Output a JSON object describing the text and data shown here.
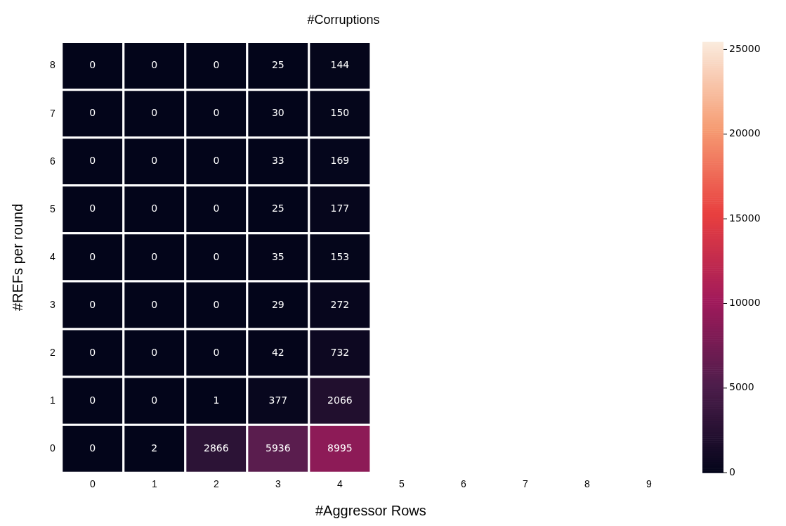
{
  "chart_data": {
    "type": "heatmap",
    "title": "#Corruptions",
    "xlabel": "#Aggressor Rows",
    "ylabel": "#REFs per round",
    "categories": [
      "0",
      "1",
      "2",
      "3",
      "4",
      "5",
      "6",
      "7",
      "8",
      "9"
    ],
    "y_categories": [
      "8",
      "7",
      "6",
      "5",
      "4",
      "3",
      "2",
      "1",
      "0"
    ],
    "cells": [
      [
        0,
        0,
        0,
        25,
        144,
        null,
        null,
        null,
        null,
        null
      ],
      [
        0,
        0,
        0,
        30,
        150,
        null,
        null,
        null,
        null,
        null
      ],
      [
        0,
        0,
        0,
        33,
        169,
        null,
        null,
        null,
        null,
        null
      ],
      [
        0,
        0,
        0,
        25,
        177,
        null,
        null,
        null,
        null,
        null
      ],
      [
        0,
        0,
        0,
        35,
        153,
        null,
        null,
        null,
        null,
        null
      ],
      [
        0,
        0,
        0,
        29,
        272,
        null,
        null,
        null,
        null,
        null
      ],
      [
        0,
        0,
        0,
        42,
        732,
        null,
        null,
        null,
        null,
        null
      ],
      [
        0,
        0,
        1,
        377,
        2066,
        null,
        null,
        null,
        null,
        null
      ],
      [
        0,
        2,
        2866,
        5936,
        8995,
        null,
        null,
        null,
        null,
        null
      ]
    ],
    "clim": [
      0,
      25450
    ],
    "cticks": [
      0,
      5000,
      10000,
      15000,
      20000,
      25000
    ],
    "data_labels": true
  }
}
